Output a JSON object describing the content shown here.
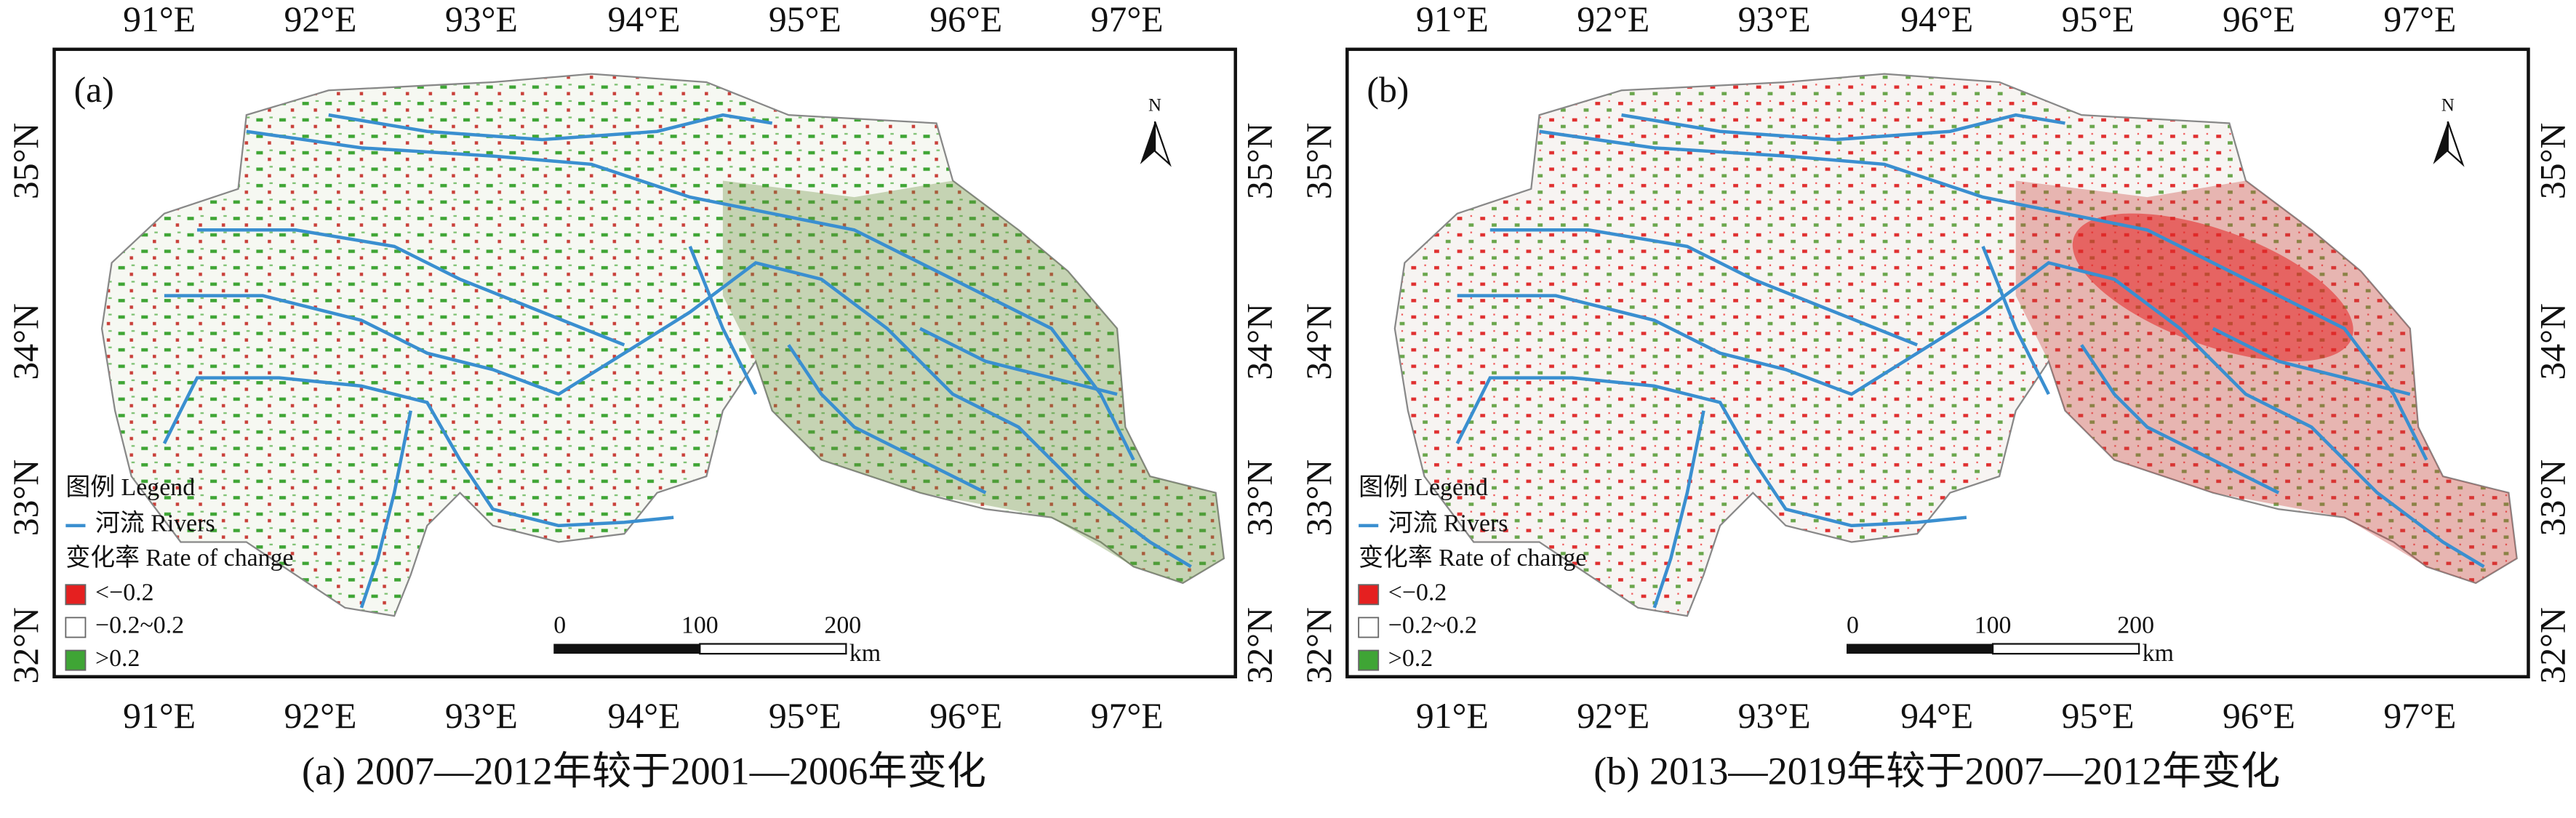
{
  "axes": {
    "lon_labels": [
      "91°E",
      "92°E",
      "93°E",
      "94°E",
      "95°E",
      "96°E",
      "97°E"
    ],
    "lat_labels": [
      "35°N",
      "34°N",
      "33°N",
      "32°N"
    ]
  },
  "north": "N",
  "legend": {
    "title": "图例 Legend",
    "rivers": "河流 Rivers",
    "rate_title": "变化率 Rate of change",
    "classes": [
      "<−0.2",
      "−0.2~0.2",
      ">0.2"
    ]
  },
  "scale_bar": {
    "labels": [
      "0",
      "100",
      "200"
    ],
    "unit": "km"
  },
  "panels": [
    {
      "label": "(a)",
      "caption": "(a) 2007—2012年较于2001—2006年变化"
    },
    {
      "label": "(b)",
      "caption": "(b) 2013—2019年较于2007—2012年变化"
    }
  ]
}
